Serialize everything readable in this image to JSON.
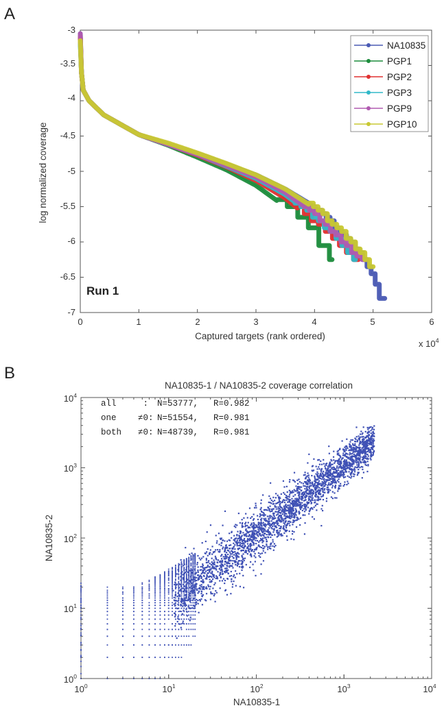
{
  "chart_data": [
    {
      "panel_label": "A",
      "type": "line",
      "xlabel": "Captured targets (rank ordered)",
      "x_multiplier": "x 10",
      "x_multiplier_exp": "4",
      "ylabel": "log normalized coverage",
      "annotation": "Run 1",
      "xlim": [
        0,
        6
      ],
      "ylim": [
        -7,
        -3
      ],
      "xticks": [
        "0",
        "1",
        "2",
        "3",
        "4",
        "5",
        "6"
      ],
      "yticks": [
        "-3",
        "-3.5",
        "-4",
        "-4.5",
        "-5",
        "-5.5",
        "-6",
        "-6.5",
        "-7"
      ],
      "legend_position": "top-right",
      "grid": false,
      "series": [
        {
          "name": "NA10835",
          "color": "#4a5ab4",
          "step_width": 0.07,
          "x": [
            0,
            0.02,
            0.05,
            0.15,
            0.4,
            1.0,
            1.5,
            2.0,
            2.5,
            3.0,
            3.5,
            4.0,
            4.3,
            4.6,
            4.8,
            5.0,
            5.1,
            5.2
          ],
          "y": [
            -3.05,
            -3.6,
            -3.85,
            -4.0,
            -4.2,
            -4.48,
            -4.62,
            -4.75,
            -4.9,
            -5.05,
            -5.25,
            -5.5,
            -5.75,
            -6.0,
            -6.2,
            -6.5,
            -6.8,
            -6.8
          ]
        },
        {
          "name": "PGP1",
          "color": "#1c8c3c",
          "step_width": 0.18,
          "x": [
            0,
            0.02,
            0.05,
            0.15,
            0.4,
            1.0,
            1.5,
            2.0,
            2.5,
            3.0,
            3.5,
            3.75,
            3.95,
            4.15,
            4.3
          ],
          "y": [
            -3.1,
            -3.6,
            -3.85,
            -4.0,
            -4.2,
            -4.48,
            -4.63,
            -4.8,
            -4.98,
            -5.2,
            -5.5,
            -5.68,
            -5.85,
            -6.15,
            -6.3
          ]
        },
        {
          "name": "PGP2",
          "color": "#e03030",
          "step_width": 0.12,
          "x": [
            0,
            0.02,
            0.05,
            0.15,
            0.4,
            1.0,
            1.5,
            2.0,
            2.5,
            3.0,
            3.5,
            4.0,
            4.3,
            4.6,
            4.75
          ],
          "y": [
            -3.1,
            -3.6,
            -3.85,
            -4.0,
            -4.2,
            -4.48,
            -4.62,
            -4.77,
            -4.94,
            -5.13,
            -5.38,
            -5.72,
            -5.95,
            -6.2,
            -6.3
          ]
        },
        {
          "name": "PGP3",
          "color": "#30b8c8",
          "step_width": 0.1,
          "x": [
            0,
            0.02,
            0.05,
            0.15,
            0.4,
            1.0,
            1.5,
            2.0,
            2.5,
            3.0,
            3.5,
            4.0,
            4.3,
            4.55,
            4.7
          ],
          "y": [
            -3.2,
            -3.6,
            -3.85,
            -4.0,
            -4.2,
            -4.48,
            -4.62,
            -4.76,
            -4.93,
            -5.1,
            -5.33,
            -5.65,
            -5.9,
            -6.15,
            -6.3
          ]
        },
        {
          "name": "PGP9",
          "color": "#b05ab0",
          "step_width": 0.09,
          "x": [
            0,
            0.02,
            0.05,
            0.15,
            0.4,
            1.0,
            1.5,
            2.0,
            2.5,
            3.0,
            3.5,
            4.0,
            4.4,
            4.7,
            4.9
          ],
          "y": [
            -3.05,
            -3.6,
            -3.85,
            -4.0,
            -4.2,
            -4.48,
            -4.62,
            -4.76,
            -4.92,
            -5.08,
            -5.3,
            -5.6,
            -5.95,
            -6.2,
            -6.3
          ]
        },
        {
          "name": "PGP10",
          "color": "#c8c832",
          "step_width": 0.08,
          "x": [
            0,
            0.02,
            0.05,
            0.15,
            0.4,
            1.0,
            1.5,
            2.0,
            2.5,
            3.0,
            3.5,
            4.0,
            4.4,
            4.7,
            4.85,
            5.0
          ],
          "y": [
            -3.15,
            -3.6,
            -3.85,
            -4.0,
            -4.2,
            -4.48,
            -4.6,
            -4.74,
            -4.89,
            -5.05,
            -5.25,
            -5.52,
            -5.82,
            -6.08,
            -6.25,
            -6.4
          ]
        }
      ]
    },
    {
      "panel_label": "B",
      "type": "scatter",
      "title": "NA10835-1 / NA10835-2 coverage correlation",
      "xlabel": "NA10835-1",
      "ylabel": "NA10835-2",
      "xscale": "log",
      "yscale": "log",
      "xlim": [
        1,
        10000
      ],
      "ylim": [
        1,
        10000
      ],
      "tick_base": "10",
      "tick_exponents": [
        "0",
        "1",
        "2",
        "3",
        "4"
      ],
      "point_color": "#3f51b5",
      "stats": [
        {
          "label": "all",
          "sep": " :",
          "n": "N=53777,",
          "r": "R=0.982"
        },
        {
          "label": "one",
          "sep": "≠0:",
          "n": "N=51554,",
          "r": "R=0.981"
        },
        {
          "label": "both",
          "sep": "≠0:",
          "n": "N=48739,",
          "r": "R=0.981"
        }
      ],
      "ridge": [
        {
          "x": 1,
          "y": 1
        },
        {
          "x": 10,
          "y": 10
        },
        {
          "x": 100,
          "y": 100
        },
        {
          "x": 1000,
          "y": 1000
        },
        {
          "x": 2200,
          "y": 3500
        }
      ],
      "spread_log10_sd": 0.22
    }
  ]
}
